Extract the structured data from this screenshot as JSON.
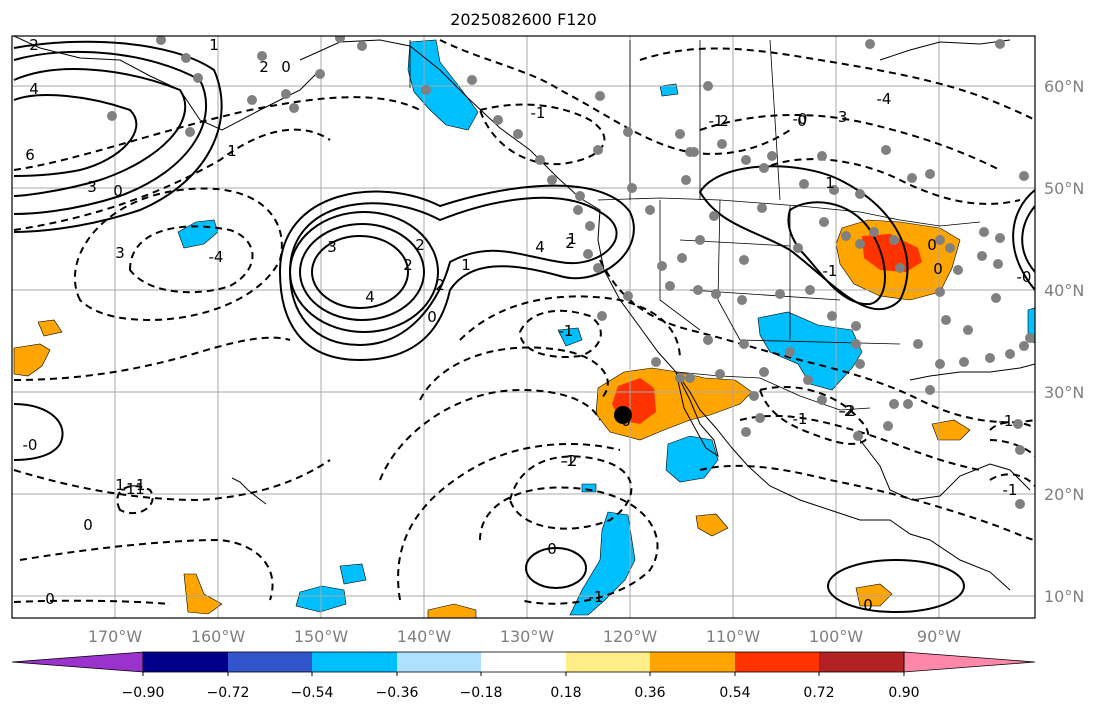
{
  "title": "2025082600 F120",
  "map": {
    "lon_labels": [
      "170°W",
      "160°W",
      "150°W",
      "140°W",
      "130°W",
      "120°W",
      "110°W",
      "100°W",
      "90°W"
    ],
    "lat_labels": [
      "60°N",
      "50°N",
      "40°N",
      "30°N",
      "20°N",
      "10°N"
    ],
    "contour_labels": [
      "2",
      "1",
      "4",
      "6",
      "3",
      "0",
      "2",
      "1",
      "0",
      "-0",
      "1",
      "0",
      "3",
      "2",
      "1",
      "4",
      "-4",
      "3",
      "4",
      "2",
      "2",
      "1",
      "0",
      "2",
      "2",
      "1",
      "0",
      "-1",
      "-1",
      "-4",
      "-3",
      "-1",
      "-2",
      "0",
      "-1",
      "-2",
      "-1",
      "0",
      "-1",
      "0",
      "-1",
      "-1",
      "0",
      "-0",
      "-1",
      "0",
      "0",
      "-1",
      "1",
      "-2",
      "-1",
      "-0"
    ]
  },
  "colorbar": {
    "ticks": [
      "−0.90",
      "−0.72",
      "−0.54",
      "−0.36",
      "−0.18",
      "0.18",
      "0.36",
      "0.54",
      "0.72",
      "0.90"
    ],
    "colors": [
      "#9933cc",
      "#00008b",
      "#3355cc",
      "#00bfff",
      "#aee0ff",
      "#ffffff",
      "#ffee88",
      "#ffa500",
      "#ff3300",
      "#b22222",
      "#ff88aa"
    ]
  },
  "colors": {
    "grid": "#a8a8a8",
    "coast": "#000000",
    "stations": "#808080",
    "blue_fill": "#00bfff",
    "orange_fill": "#ffa500",
    "red_fill": "#ff3300"
  }
}
